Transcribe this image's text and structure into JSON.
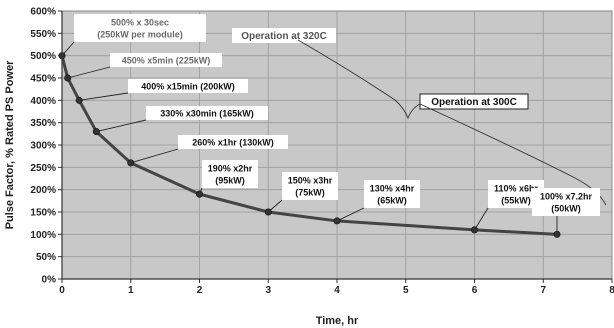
{
  "chart_data": {
    "type": "line",
    "xlabel": "Time, hr",
    "ylabel": "Pulse Factor, % Rated PS Power",
    "xlim": [
      0,
      8
    ],
    "ylim": [
      0,
      600
    ],
    "x_ticks": [
      "0",
      "1",
      "2",
      "3",
      "4",
      "5",
      "6",
      "7",
      "8"
    ],
    "y_ticks": [
      "0%",
      "50%",
      "100%",
      "150%",
      "200%",
      "250%",
      "300%",
      "350%",
      "400%",
      "450%",
      "500%",
      "550%",
      "600%"
    ],
    "grid": true,
    "background_color": "#c8c8c8",
    "line_color": "#444444",
    "series": [
      {
        "x": [
          0,
          0.083,
          0.25,
          0.5,
          1,
          2,
          3,
          4,
          6,
          7.2
        ],
        "y": [
          500,
          450,
          400,
          330,
          260,
          190,
          150,
          130,
          110,
          100
        ]
      }
    ],
    "annotations": [
      {
        "lines": [
          "500% x 30sec",
          "(250kW per module)"
        ],
        "point": [
          0,
          500
        ],
        "style": "light"
      },
      {
        "lines": [
          "450% x5min (225kW)"
        ],
        "point": [
          0.083,
          450
        ],
        "style": "light"
      },
      {
        "lines": [
          "400% x15min (200kW)"
        ],
        "point": [
          0.25,
          400
        ],
        "style": "dark"
      },
      {
        "lines": [
          "330% x30min (165kW)"
        ],
        "point": [
          0.5,
          330
        ],
        "style": "dark"
      },
      {
        "lines": [
          "260% x1hr (130kW)"
        ],
        "point": [
          1,
          260
        ],
        "style": "dark"
      },
      {
        "lines": [
          "190% x2hr",
          "(95kW)"
        ],
        "point": [
          2,
          190
        ],
        "style": "dark"
      },
      {
        "lines": [
          "150% x3hr",
          "(75kW)"
        ],
        "point": [
          3,
          150
        ],
        "style": "dark"
      },
      {
        "lines": [
          "130% x4hr",
          "(65kW)"
        ],
        "point": [
          4,
          130
        ],
        "style": "dark"
      },
      {
        "lines": [
          "110% x6hr",
          "(55kW)"
        ],
        "point": [
          6,
          110
        ],
        "style": "dark"
      },
      {
        "lines": [
          "100% x7.2hr",
          "(50kW)"
        ],
        "point": [
          7.2,
          100
        ],
        "style": "dark"
      }
    ],
    "regions": [
      {
        "label": "Operation at 320C",
        "style": "light"
      },
      {
        "label": "Operation at 300C",
        "style": "dark"
      }
    ]
  }
}
